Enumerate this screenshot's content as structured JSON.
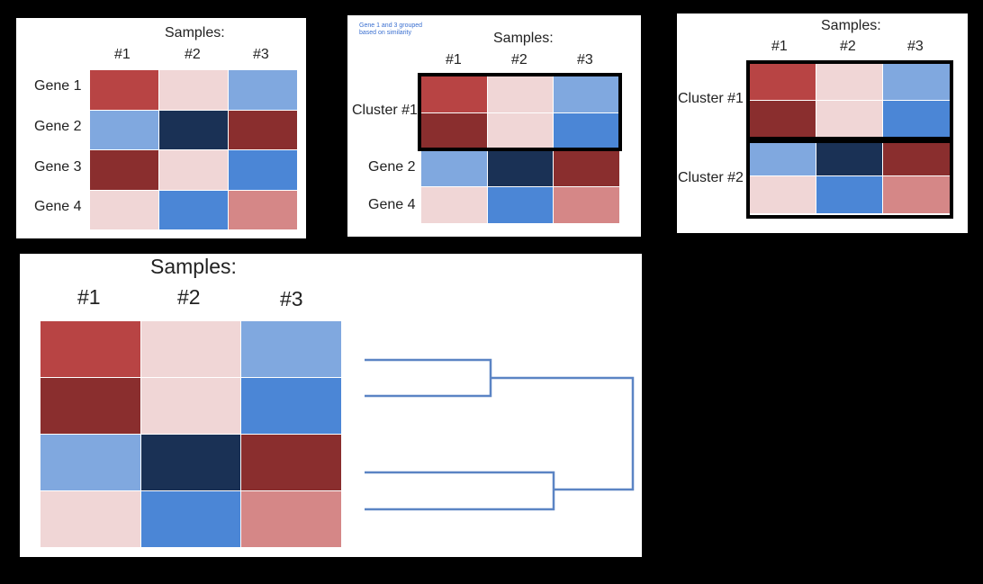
{
  "colors": {
    "red": "#b84444",
    "dark_red": "#8a2e2e",
    "light_pink": "#f0d6d6",
    "light_blue": "#80a8df",
    "mid_blue": "#4b86d6",
    "navy": "#1a3155",
    "pink": "#d58787",
    "dendrogram": "#5b84c4"
  },
  "panel1": {
    "samples_label": "Samples:",
    "columns": [
      "#1",
      "#2",
      "#3"
    ],
    "rows": [
      "Gene 1",
      "Gene 2",
      "Gene 3",
      "Gene 4"
    ],
    "matrix": [
      [
        "red",
        "light_pink",
        "light_blue"
      ],
      [
        "light_blue",
        "navy",
        "dark_red"
      ],
      [
        "dark_red",
        "light_pink",
        "mid_blue"
      ],
      [
        "light_pink",
        "mid_blue",
        "pink"
      ]
    ]
  },
  "panel2": {
    "note": [
      "Gene 1 and 3 grouped",
      "based on similarity"
    ],
    "samples_label": "Samples:",
    "columns": [
      "#1",
      "#2",
      "#3"
    ],
    "rows": [
      "Cluster #1",
      "Gene 2",
      "Gene 4"
    ],
    "matrix": [
      [
        "red",
        "light_pink",
        "light_blue"
      ],
      [
        "dark_red",
        "light_pink",
        "mid_blue"
      ],
      [
        "light_blue",
        "navy",
        "dark_red"
      ],
      [
        "light_pink",
        "mid_blue",
        "pink"
      ]
    ]
  },
  "panel3": {
    "samples_label": "Samples:",
    "columns": [
      "#1",
      "#2",
      "#3"
    ],
    "rows": [
      "Cluster #1",
      "Cluster #2"
    ],
    "matrix": [
      [
        "red",
        "light_pink",
        "light_blue"
      ],
      [
        "dark_red",
        "light_pink",
        "mid_blue"
      ],
      [
        "light_blue",
        "navy",
        "dark_red"
      ],
      [
        "light_pink",
        "mid_blue",
        "pink"
      ]
    ]
  },
  "panel4": {
    "samples_label": "Samples:",
    "columns": [
      "#1",
      "#2",
      "#3"
    ],
    "matrix": [
      [
        "red",
        "light_pink",
        "light_blue"
      ],
      [
        "dark_red",
        "light_pink",
        "mid_blue"
      ],
      [
        "light_blue",
        "navy",
        "dark_red"
      ],
      [
        "light_pink",
        "mid_blue",
        "pink"
      ]
    ]
  }
}
